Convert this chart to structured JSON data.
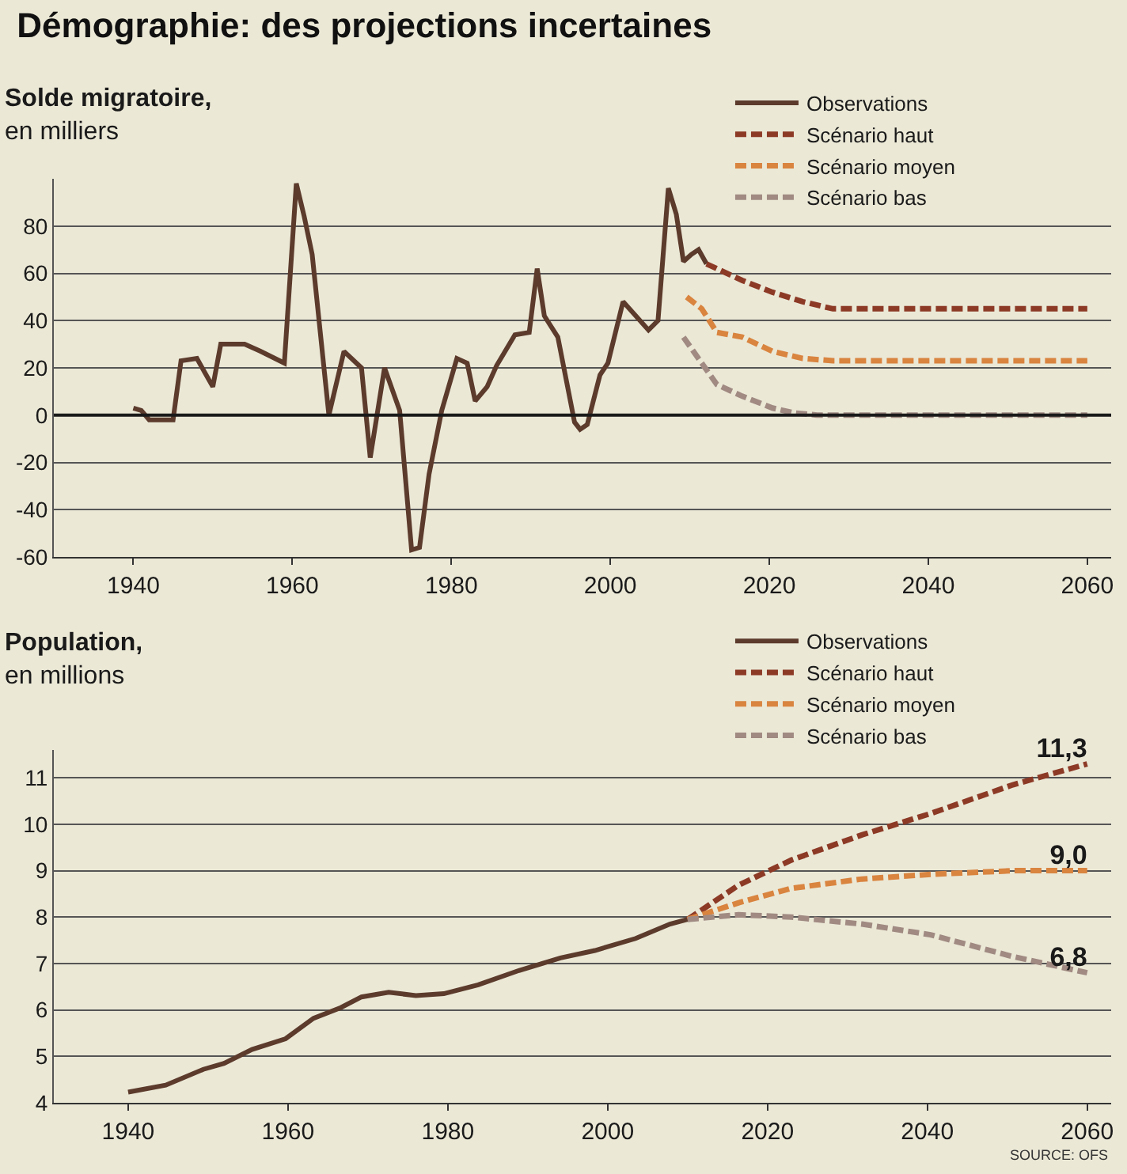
{
  "chart_data": [
    {
      "type": "line",
      "title": "Démographie: des projections incertaines",
      "ylabel": "Solde migratoire, en milliers",
      "xlim": [
        1930,
        2063
      ],
      "xticks": [
        1940,
        1960,
        1980,
        2000,
        2020,
        2040,
        2060
      ],
      "ylim": [
        -60,
        100
      ],
      "yticks": [
        -60,
        -40,
        -20,
        0,
        20,
        40,
        60,
        80
      ],
      "grid": "y",
      "legend": "top right",
      "marker": "none",
      "ref_lines": [
        {
          "axis": "y",
          "value": 0,
          "color": "#1a1a1a"
        }
      ],
      "series": [
        {
          "name": "Observations",
          "color": "#5c3b2c",
          "line_style": "solid",
          "x": [
            1940,
            1941,
            1942,
            1945,
            1946,
            1948,
            1950,
            1951,
            1954,
            1956,
            1959,
            1960.5,
            1961.5,
            1962.5,
            1964.6,
            1966.5,
            1968.7,
            1969.8,
            1971.6,
            1973.5,
            1975,
            1976,
            1977.2,
            1978.8,
            1980.7,
            1982,
            1983,
            1984.5,
            1985.7,
            1988,
            1989.8,
            1990.8,
            1991.7,
            1993.4,
            1995.5,
            1996.2,
            1997.1,
            1998.7,
            1999.7,
            2001.6,
            2004.8,
            2006,
            2007.3,
            2008.3,
            2009.2,
            2010.2,
            2011.1,
            2012.1
          ],
          "values": [
            3,
            2,
            -2,
            -2,
            23,
            24,
            12,
            30,
            30,
            27,
            22,
            98,
            84,
            68,
            0,
            27,
            20,
            -18,
            20,
            2,
            -57,
            -56,
            -25,
            2,
            24,
            22,
            6,
            12,
            21,
            34,
            35,
            62,
            42,
            33,
            -3,
            -6,
            -4,
            17,
            22,
            48,
            36,
            40,
            96,
            85,
            65,
            68,
            70,
            64
          ]
        },
        {
          "name": "Scénario haut",
          "color": "#8c3a26",
          "line_style": "dashed",
          "x": [
            2012.1,
            2016.6,
            2020.4,
            2024.2,
            2028,
            2060
          ],
          "values": [
            64,
            57,
            52,
            48,
            45,
            45
          ]
        },
        {
          "name": "Scénario moyen",
          "color": "#d9843f",
          "line_style": "dashed",
          "x": [
            2009.6,
            2011.5,
            2013.4,
            2016.6,
            2020.4,
            2024.2,
            2028,
            2060
          ],
          "values": [
            50,
            45,
            35,
            33,
            27,
            24,
            23,
            23
          ]
        },
        {
          "name": "Scénario bas",
          "color": "#a08a82",
          "line_style": "dashed",
          "x": [
            2009.2,
            2011.5,
            2013.4,
            2016.6,
            2020.4,
            2023,
            2026,
            2060
          ],
          "values": [
            33,
            22,
            13,
            8,
            3,
            1,
            0,
            0
          ]
        }
      ]
    },
    {
      "type": "line",
      "ylabel": "Population, en millions",
      "xlim": [
        1930.7,
        2063
      ],
      "xticks": [
        1940,
        1960,
        1980,
        2000,
        2020,
        2040,
        2060
      ],
      "ylim": [
        4,
        11.6
      ],
      "yticks": [
        4,
        5,
        6,
        7,
        8,
        9,
        10,
        11
      ],
      "grid": "y",
      "legend": "top right",
      "marker": "none",
      "annotations": [
        "SOURCE: OFS"
      ],
      "series": [
        {
          "name": "Observations",
          "color": "#5c3b2c",
          "line_style": "solid",
          "x": [
            1940,
            1944.7,
            1949.4,
            1952,
            1955.5,
            1959.7,
            1963.2,
            1966.6,
            1969.2,
            1972.6,
            1976,
            1979.5,
            1983.8,
            1988.9,
            1994.1,
            1998.4,
            2003.5,
            2007.8,
            2010
          ],
          "values": [
            4.23,
            4.38,
            4.72,
            4.85,
            5.15,
            5.38,
            5.82,
            6.05,
            6.28,
            6.38,
            6.31,
            6.35,
            6.54,
            6.85,
            7.12,
            7.28,
            7.54,
            7.85,
            7.95
          ]
        },
        {
          "name": "Scénario haut",
          "color": "#8c3a26",
          "line_style": "dashed",
          "x": [
            2010,
            2016.4,
            2023,
            2031.8,
            2040.4,
            2050.7,
            2060
          ],
          "values": [
            7.95,
            8.69,
            9.23,
            9.77,
            10.23,
            10.85,
            11.3
          ],
          "value_labels": [
            null,
            null,
            null,
            null,
            null,
            null,
            "11,3"
          ]
        },
        {
          "name": "Scénario moyen",
          "color": "#d9843f",
          "line_style": "dashed",
          "x": [
            2010,
            2016.4,
            2023,
            2031.8,
            2040.4,
            2050.7,
            2060
          ],
          "values": [
            7.95,
            8.31,
            8.62,
            8.82,
            8.92,
            9.0,
            9.0
          ],
          "value_labels": [
            null,
            null,
            null,
            null,
            null,
            null,
            "9,0"
          ]
        },
        {
          "name": "Scénario bas",
          "color": "#a08a82",
          "line_style": "dashed",
          "x": [
            2010,
            2016.4,
            2023,
            2031.8,
            2040.4,
            2050.7,
            2060
          ],
          "values": [
            7.95,
            8.05,
            8.0,
            7.85,
            7.62,
            7.15,
            6.8
          ],
          "value_labels": [
            null,
            null,
            null,
            null,
            null,
            null,
            "6,8"
          ]
        }
      ]
    }
  ]
}
